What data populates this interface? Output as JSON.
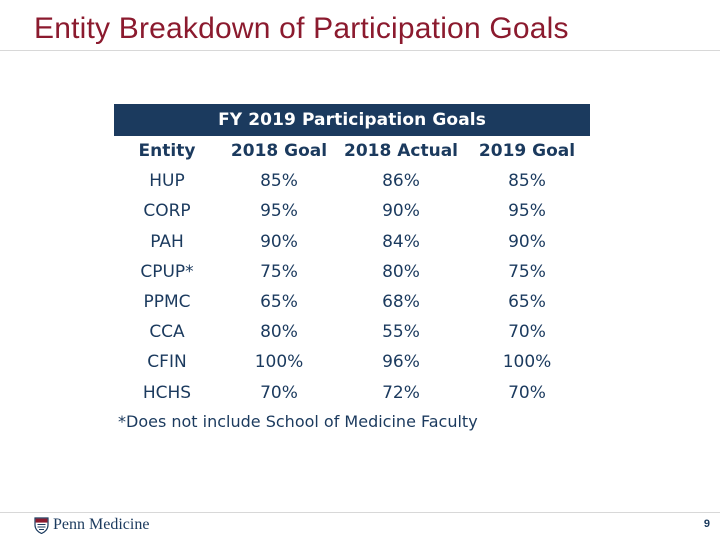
{
  "slide": {
    "title": "Entity Breakdown of Participation Goals",
    "page_number": "9"
  },
  "table": {
    "caption": "FY 2019 Participation Goals",
    "headers": [
      "Entity",
      "2018 Goal",
      "2018 Actual",
      "2019 Goal"
    ],
    "rows": [
      [
        "HUP",
        "85%",
        "86%",
        "85%"
      ],
      [
        "CORP",
        "95%",
        "90%",
        "95%"
      ],
      [
        "PAH",
        "90%",
        "84%",
        "90%"
      ],
      [
        "CPUP*",
        "75%",
        "80%",
        "75%"
      ],
      [
        "PPMC",
        "65%",
        "68%",
        "65%"
      ],
      [
        "CCA",
        "80%",
        "55%",
        "70%"
      ],
      [
        "CFIN",
        "100%",
        "96%",
        "100%"
      ],
      [
        "HCHS",
        "70%",
        "72%",
        "70%"
      ]
    ],
    "footnote": "*Does not include School of Medicine Faculty"
  },
  "footer": {
    "logo_text": "Penn Medicine"
  },
  "colors": {
    "title": "#8b1a2e",
    "navy": "#1b3a5e",
    "rule": "#d8d8d8"
  }
}
